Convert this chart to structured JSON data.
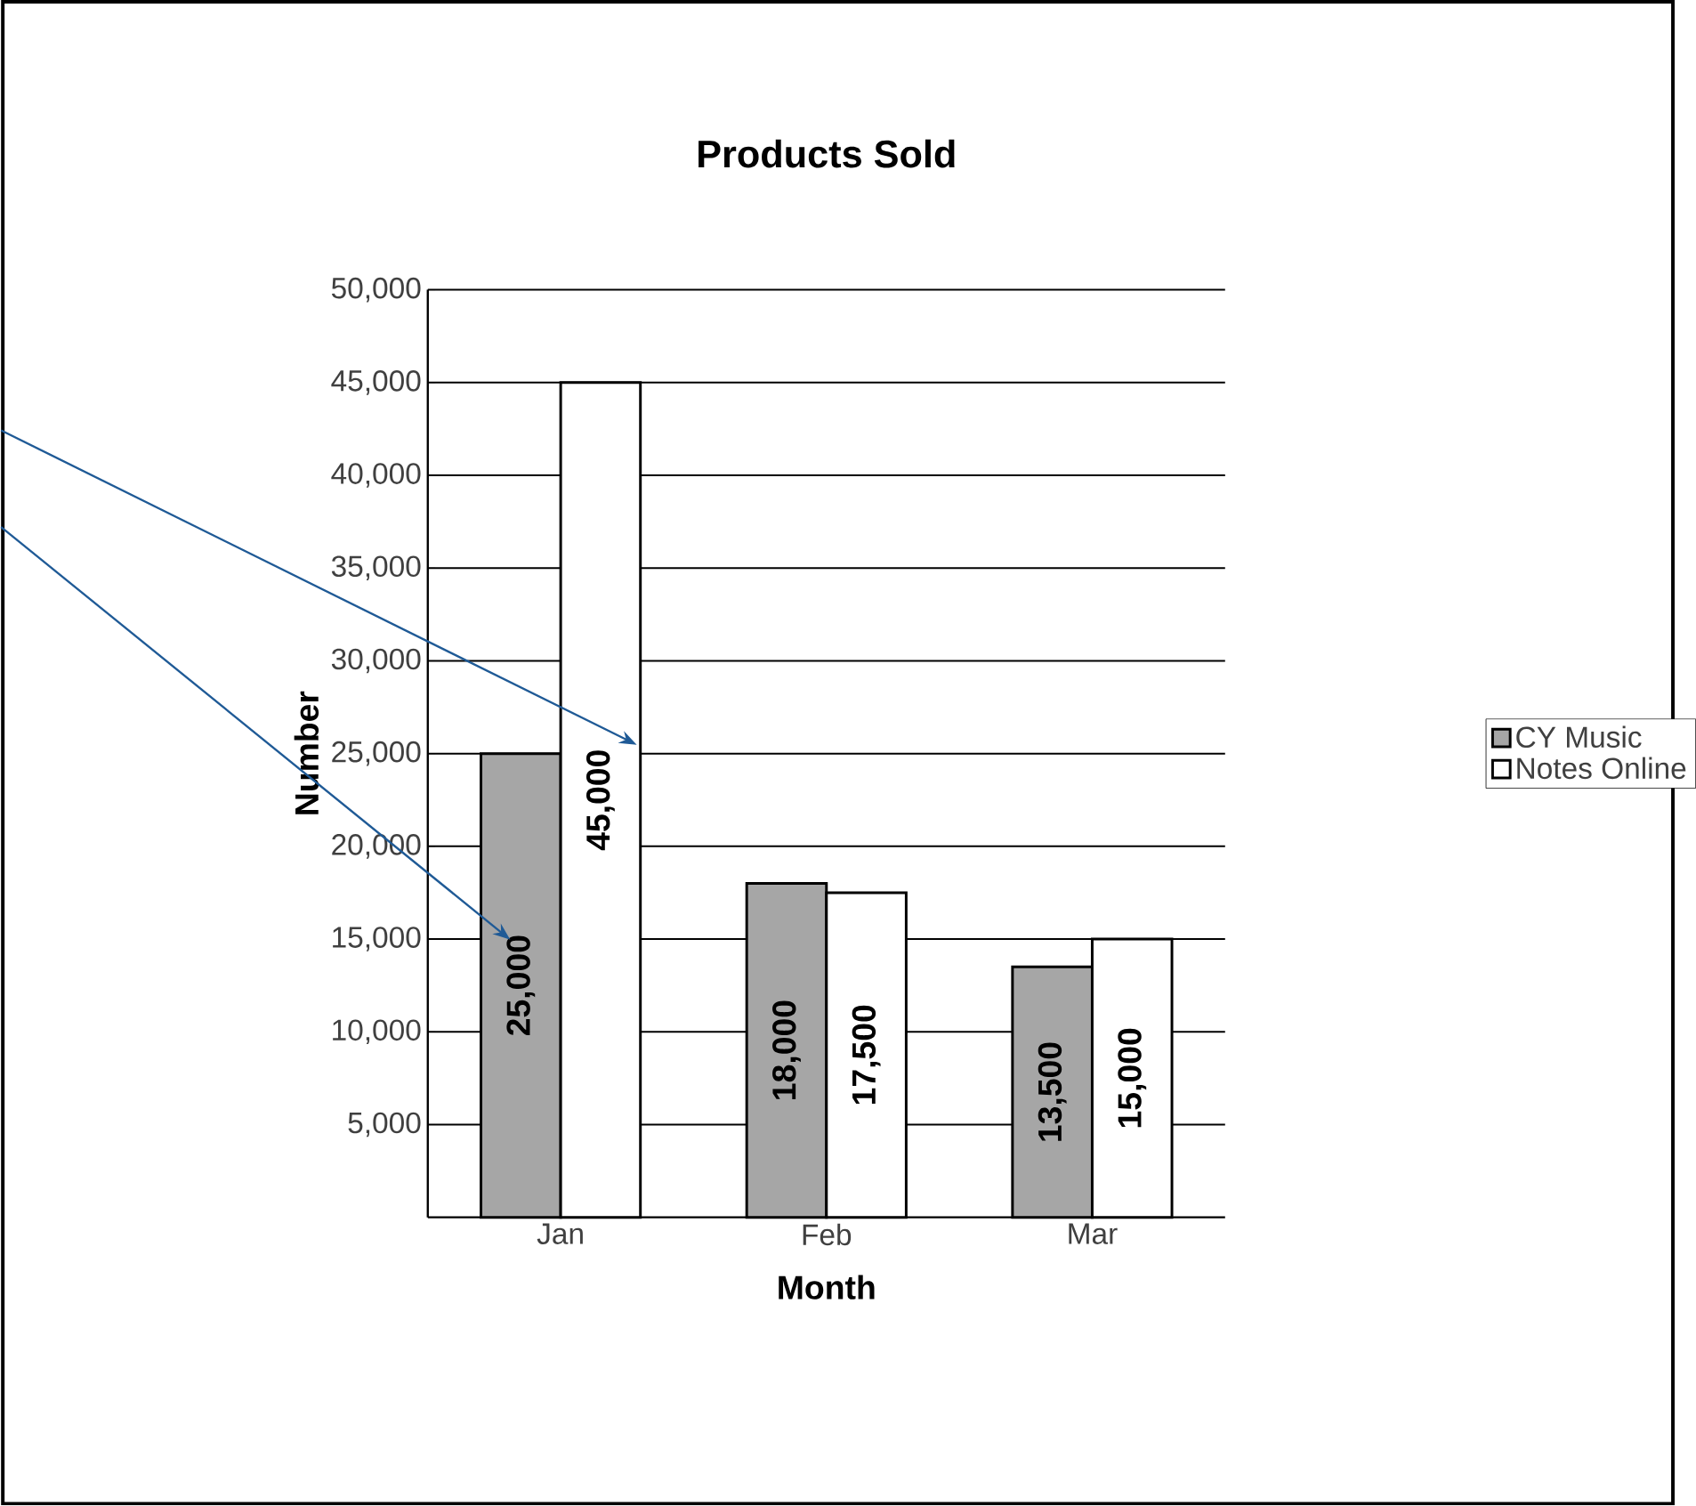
{
  "chart_data": {
    "type": "bar",
    "title": "Products Sold",
    "xlabel": "Month",
    "ylabel": "Number",
    "categories": [
      "Jan",
      "Feb",
      "Mar"
    ],
    "series": [
      {
        "name": "CY Music",
        "color": "#a6a6a6",
        "values": [
          25000,
          18000,
          13500
        ],
        "value_labels": [
          "25,000",
          "18,000",
          "13,500"
        ]
      },
      {
        "name": "Notes Online",
        "color": "#ffffff",
        "values": [
          45000,
          17500,
          15000
        ],
        "value_labels": [
          "45,000",
          "17,500",
          "15,000"
        ]
      }
    ],
    "ylim": [
      0,
      50000
    ],
    "yticks": [
      {
        "value": 5000,
        "label": "5,000"
      },
      {
        "value": 10000,
        "label": "10,000"
      },
      {
        "value": 15000,
        "label": "15,000"
      },
      {
        "value": 20000,
        "label": "20,000"
      },
      {
        "value": 25000,
        "label": "25,000"
      },
      {
        "value": 30000,
        "label": "30,000"
      },
      {
        "value": 35000,
        "label": "35,000"
      },
      {
        "value": 40000,
        "label": "40,000"
      },
      {
        "value": 45000,
        "label": "45,000"
      },
      {
        "value": 50000,
        "label": "50,000"
      }
    ],
    "grid": "y",
    "legend": "right"
  }
}
